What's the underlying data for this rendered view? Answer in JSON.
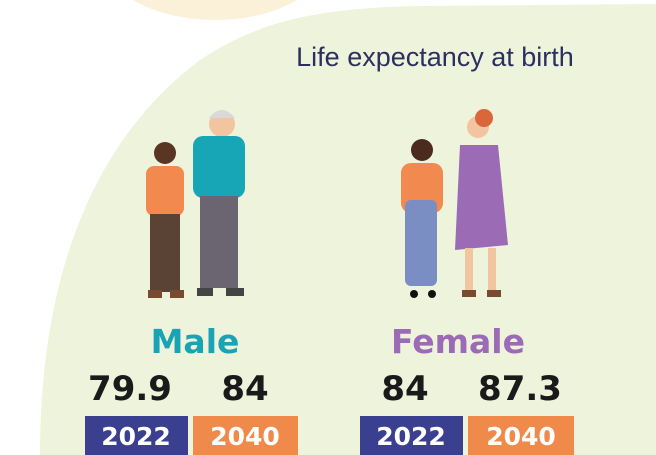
{
  "title": "Life expectancy at birth",
  "groups": [
    {
      "label": "Male",
      "values": [
        79.9,
        84
      ],
      "years": [
        "2022",
        "2040"
      ]
    },
    {
      "label": "Female",
      "values": [
        84,
        87.3
      ],
      "years": [
        "2022",
        "2040"
      ]
    }
  ]
}
